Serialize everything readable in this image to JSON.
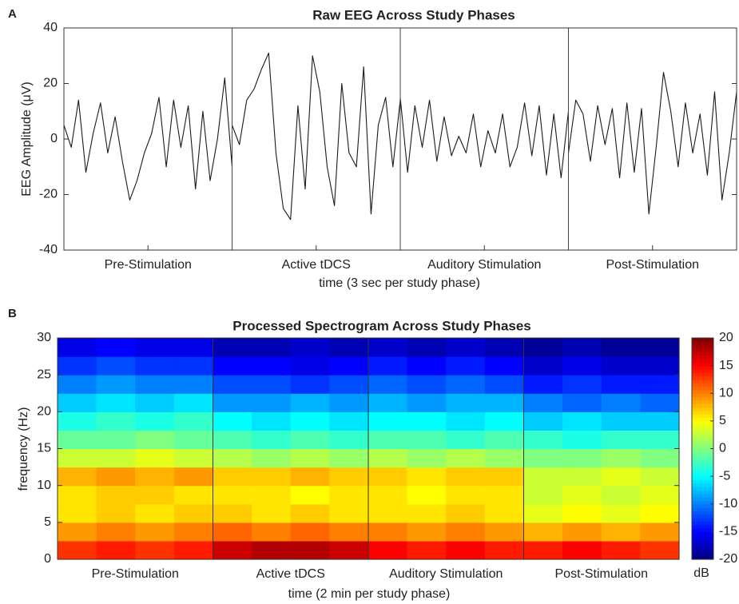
{
  "chart_data": [
    {
      "type": "line",
      "panel": "A",
      "title": "Raw EEG Across Study Phases",
      "xlabel": "time (3 sec per study phase)",
      "ylabel": "EEG Amplitude (μV)",
      "ylim": [
        -40,
        40
      ],
      "yticks": [
        -40,
        -20,
        0,
        20,
        40
      ],
      "color": "#1a1a1a",
      "phases": [
        {
          "label": "Pre-Stimulation",
          "values": [
            5,
            -3,
            14,
            -12,
            2,
            13,
            -5,
            8,
            -8,
            -22,
            -15,
            -5,
            2,
            15,
            -10,
            14,
            -3,
            12,
            -18,
            10,
            -15,
            0,
            22,
            -10
          ]
        },
        {
          "label": "Active tDCS",
          "values": [
            5,
            -2,
            14,
            18,
            25,
            31,
            -5,
            -25,
            -29,
            12,
            -18,
            30,
            17,
            -10,
            -24,
            20,
            -5,
            -10,
            26,
            -27,
            5,
            15,
            -10,
            14
          ]
        },
        {
          "label": "Auditory Stimulation",
          "values": [
            15,
            -12,
            12,
            -3,
            14,
            -8,
            8,
            -6,
            1,
            -5,
            9,
            -10,
            3,
            -5,
            9,
            -10,
            -3,
            13,
            -6,
            12,
            -13,
            9,
            -14,
            10
          ]
        },
        {
          "label": "Post-Stimulation",
          "values": [
            -5,
            14,
            9,
            -8,
            12,
            -2,
            11,
            -14,
            13,
            -12,
            11,
            -27,
            -3,
            24,
            10,
            -10,
            13,
            -5,
            9,
            -13,
            17,
            -22,
            -5,
            17
          ]
        }
      ]
    },
    {
      "type": "heatmap",
      "panel": "B",
      "title": "Processed Spectrogram Across Study Phases",
      "xlabel": "time (2 min per study phase)",
      "ylabel": "frequency (Hz)",
      "categories": [
        "Pre-Stimulation",
        "Active tDCS",
        "Auditory Stimulation",
        "Post-Stimulation"
      ],
      "ylim": [
        0,
        30
      ],
      "yticks": [
        0,
        5,
        10,
        15,
        20,
        25,
        30
      ],
      "clim": [
        -20,
        20
      ],
      "cticks": [
        -20,
        -15,
        -10,
        -5,
        0,
        5,
        10,
        15,
        20
      ],
      "clabel": "dB",
      "colormap": "jet",
      "values": [
        [
          13,
          14,
          13,
          14,
          17,
          18,
          18,
          17,
          15,
          14,
          15,
          14,
          14,
          15,
          14,
          13
        ],
        [
          9,
          10,
          9,
          10,
          11,
          10,
          11,
          10,
          10,
          9,
          10,
          9,
          8,
          9,
          8,
          9
        ],
        [
          6,
          7,
          6,
          7,
          7,
          6,
          7,
          6,
          6,
          6,
          7,
          6,
          4,
          5,
          4,
          5
        ],
        [
          6,
          7,
          7,
          6,
          6,
          6,
          5,
          6,
          6,
          5,
          6,
          6,
          3,
          4,
          3,
          4
        ],
        [
          8,
          9,
          8,
          9,
          7,
          7,
          8,
          7,
          7,
          6,
          7,
          7,
          3,
          3,
          4,
          3
        ],
        [
          3,
          3,
          4,
          3,
          2,
          1,
          2,
          1,
          2,
          1,
          2,
          1,
          0,
          0,
          1,
          0
        ],
        [
          -1,
          -1,
          0,
          -1,
          -2,
          -3,
          -2,
          -3,
          -2,
          -2,
          -3,
          -2,
          -3,
          -4,
          -3,
          -3
        ],
        [
          -4,
          -3,
          -4,
          -3,
          -5,
          -6,
          -5,
          -6,
          -5,
          -5,
          -6,
          -5,
          -7,
          -6,
          -7,
          -7
        ],
        [
          -7,
          -6,
          -7,
          -6,
          -9,
          -9,
          -8,
          -9,
          -8,
          -9,
          -8,
          -8,
          -10,
          -11,
          -10,
          -11
        ],
        [
          -10,
          -9,
          -10,
          -10,
          -12,
          -12,
          -13,
          -12,
          -11,
          -12,
          -11,
          -12,
          -14,
          -13,
          -14,
          -14
        ],
        [
          -13,
          -12,
          -13,
          -13,
          -15,
          -15,
          -16,
          -15,
          -14,
          -15,
          -14,
          -15,
          -17,
          -16,
          -17,
          -17
        ],
        [
          -16,
          -15,
          -16,
          -16,
          -18,
          -18,
          -17,
          -18,
          -17,
          -18,
          -17,
          -18,
          -19,
          -18,
          -19,
          -19
        ]
      ]
    }
  ]
}
